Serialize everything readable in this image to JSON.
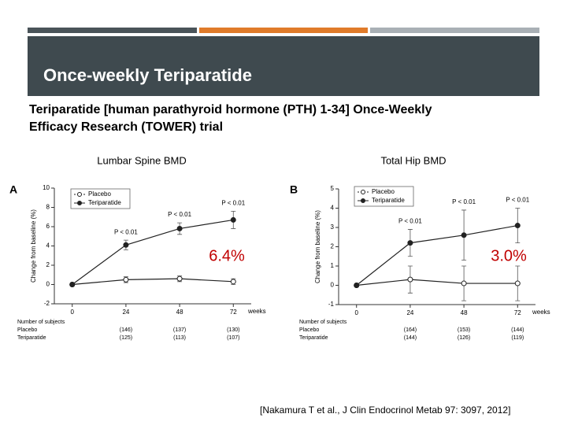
{
  "slide": {
    "title": "Once-weekly Teriparatide",
    "subtitle_lines": [
      "Teriparatide [human parathyroid hormone (PTH) 1-34] Once-Weekly",
      "Efficacy Research (TOWER) trial"
    ],
    "citation": "[Nakamura T et al., J Clin Endocrinol Metab 97: 3097, 2012]"
  },
  "chart_data": [
    {
      "type": "line",
      "title": "Lumbar Spine BMD",
      "panel": "A",
      "callout": "6.4%",
      "x_label": "weeks",
      "y_label": "Change from baseline (%)",
      "x": [
        0,
        24,
        48,
        72
      ],
      "xlim": [
        -8,
        80
      ],
      "xticks": [
        0,
        24,
        48,
        72
      ],
      "ylim": [
        -2,
        10
      ],
      "yticks": [
        -2,
        0,
        2,
        4,
        6,
        8,
        10
      ],
      "series": [
        {
          "name": "Placebo",
          "color": "#222222",
          "marker": "open",
          "values": [
            0,
            0.5,
            0.6,
            0.3
          ],
          "errors": [
            0,
            0.3,
            0.3,
            0.3
          ]
        },
        {
          "name": "Teriparatide",
          "color": "#222222",
          "marker": "filled",
          "values": [
            0,
            4.1,
            5.8,
            6.7
          ],
          "errors": [
            0,
            0.5,
            0.6,
            0.9
          ]
        }
      ],
      "p_values": [
        null,
        "P < 0.01",
        "P < 0.01",
        "P < 0.01"
      ],
      "subjects": {
        "label": "Number of subjects",
        "rows": [
          {
            "name": "Placebo",
            "counts": [
              "(146)",
              "(137)",
              "(130)"
            ]
          },
          {
            "name": "Teriparatide",
            "counts": [
              "(125)",
              "(113)",
              "(107)"
            ]
          }
        ]
      }
    },
    {
      "type": "line",
      "title": "Total Hip BMD",
      "panel": "B",
      "callout": "3.0%",
      "x_label": "weeks",
      "y_label": "Change from baseline (%)",
      "x": [
        0,
        24,
        48,
        72
      ],
      "xlim": [
        -8,
        80
      ],
      "xticks": [
        0,
        24,
        48,
        72
      ],
      "ylim": [
        -1,
        5
      ],
      "yticks": [
        -1,
        0,
        1,
        2,
        3,
        4,
        5
      ],
      "series": [
        {
          "name": "Placebo",
          "color": "#222222",
          "marker": "open",
          "values": [
            0,
            0.3,
            0.1,
            0.1
          ],
          "errors": [
            0,
            0.7,
            0.9,
            0.9
          ]
        },
        {
          "name": "Teriparatide",
          "color": "#222222",
          "marker": "filled",
          "values": [
            0,
            2.2,
            2.6,
            3.1
          ],
          "errors": [
            0,
            0.7,
            1.3,
            0.9
          ]
        }
      ],
      "p_values": [
        null,
        "P < 0.01",
        "P < 0.01",
        "P < 0.01"
      ],
      "subjects": {
        "label": "Number of subjects",
        "rows": [
          {
            "name": "Placebo",
            "counts": [
              "(164)",
              "(153)",
              "(144)"
            ]
          },
          {
            "name": "Teriparatide",
            "counts": [
              "(144)",
              "(126)",
              "(119)"
            ]
          }
        ]
      }
    }
  ]
}
